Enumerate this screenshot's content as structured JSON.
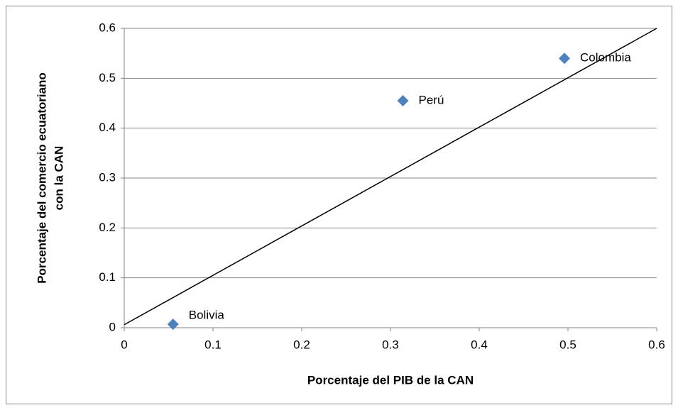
{
  "chart_data": {
    "type": "scatter",
    "x_label": "Porcentaje del PIB de la CAN",
    "y_label": [
      "Porcentaje del comercio ecuatoriano",
      "con la CAN"
    ],
    "series": [
      {
        "labels": [
          "Bolivia",
          "Perú",
          "Colombia"
        ],
        "color": "#4f81bd",
        "x": [
          0.055,
          0.314,
          0.496
        ],
        "y": [
          0.007,
          0.455,
          0.54
        ]
      }
    ],
    "reference_line": {
      "color": "#000000",
      "x": [
        0,
        0.6
      ],
      "y": [
        0.006,
        0.6
      ]
    },
    "xlim": [
      0,
      0.6
    ],
    "ylim": [
      0,
      0.6
    ],
    "xticks": [
      0,
      0.1,
      0.2,
      0.3,
      0.4,
      0.5,
      0.6
    ],
    "yticks": [
      0,
      0.1,
      0.2,
      0.3,
      0.4,
      0.5,
      0.6
    ],
    "grid": true
  }
}
